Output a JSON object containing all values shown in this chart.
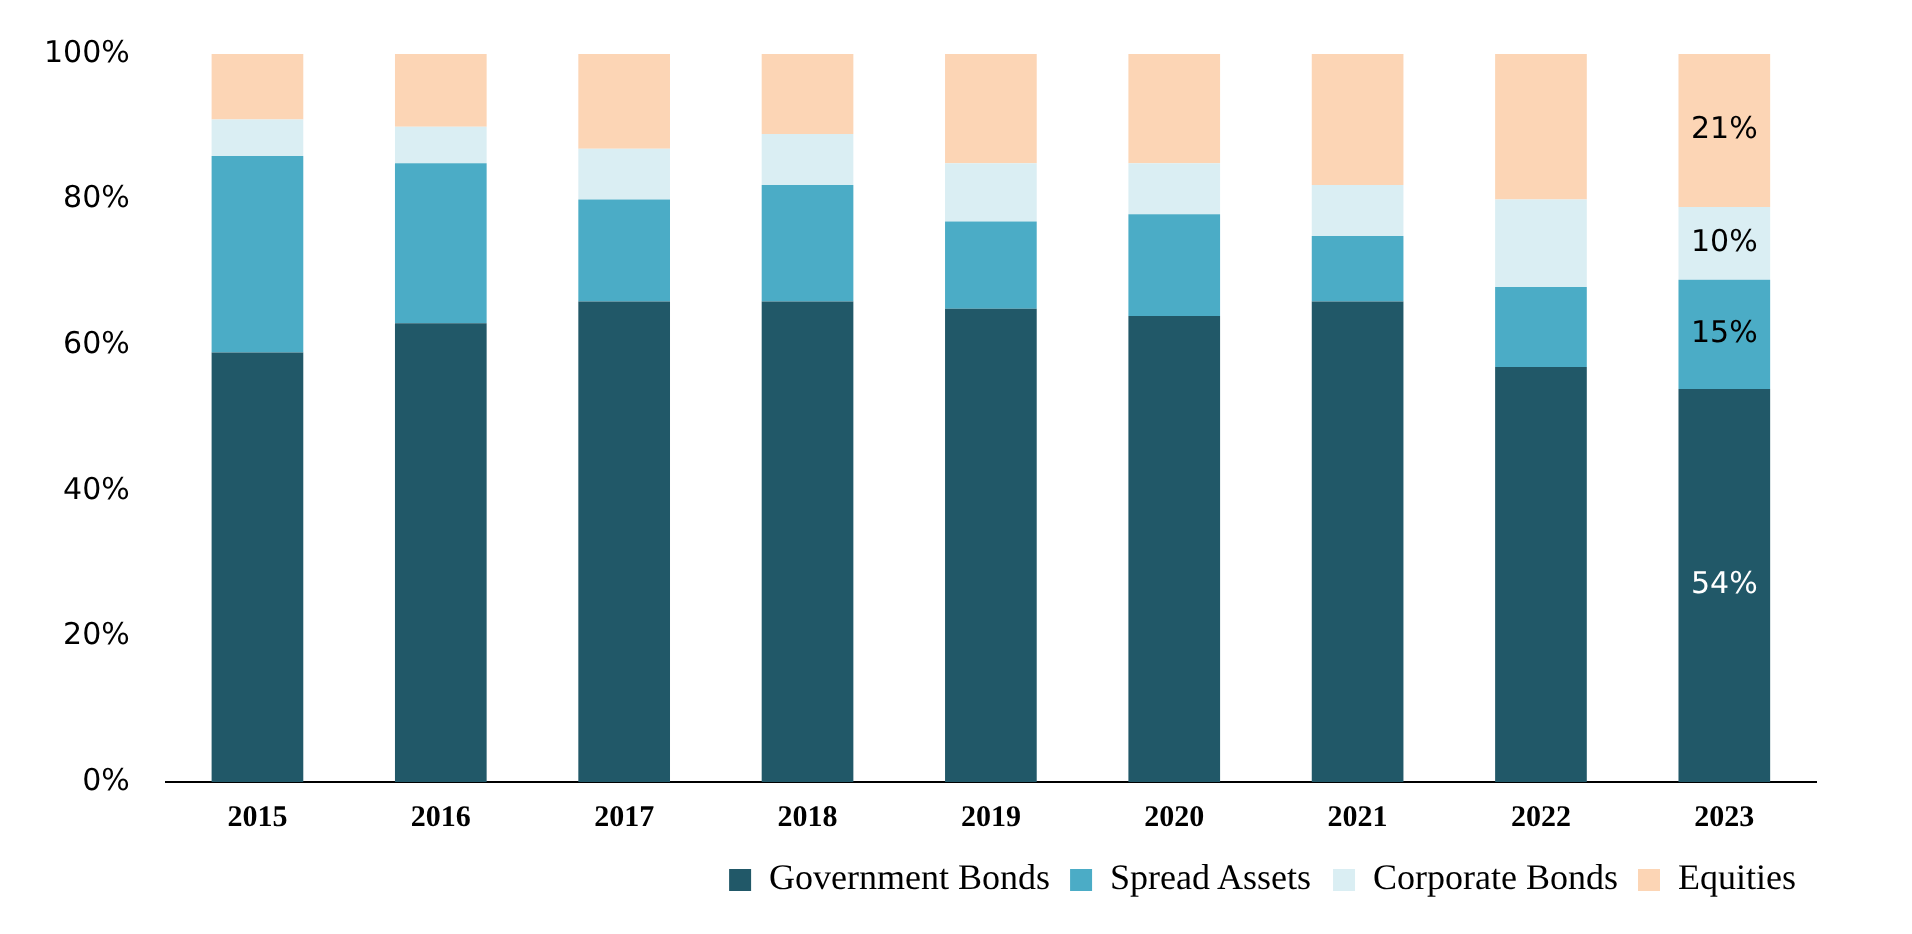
{
  "chart_data": {
    "type": "bar",
    "stacked": true,
    "categories": [
      "2015",
      "2016",
      "2017",
      "2018",
      "2019",
      "2020",
      "2021",
      "2022",
      "2023"
    ],
    "series": [
      {
        "name": "Government Bonds",
        "color": "#215868",
        "values": [
          59,
          63,
          66,
          66,
          65,
          64,
          66,
          57,
          54
        ],
        "value_labels": [
          null,
          null,
          null,
          null,
          null,
          null,
          null,
          null,
          "54%"
        ]
      },
      {
        "name": "Spread Assets",
        "color": "#4bacc6",
        "values": [
          27,
          22,
          14,
          16,
          12,
          14,
          9,
          11,
          15
        ],
        "value_labels": [
          null,
          null,
          null,
          null,
          null,
          null,
          null,
          null,
          "15%"
        ]
      },
      {
        "name": "Corporate Bonds",
        "color": "#daeef3",
        "values": [
          5,
          5,
          7,
          7,
          8,
          7,
          7,
          12,
          10
        ],
        "value_labels": [
          null,
          null,
          null,
          null,
          null,
          null,
          null,
          null,
          "10%"
        ]
      },
      {
        "name": "Equities",
        "color": "#fcd5b5",
        "values": [
          9,
          10,
          13,
          11,
          15,
          15,
          18,
          20,
          21
        ],
        "value_labels": [
          null,
          null,
          null,
          null,
          null,
          null,
          null,
          null,
          "21%"
        ]
      }
    ],
    "ylim": [
      0,
      100
    ],
    "yticks": [
      {
        "value": 0,
        "label": "0%"
      },
      {
        "value": 20,
        "label": "20%"
      },
      {
        "value": 40,
        "label": "40%"
      },
      {
        "value": 60,
        "label": "60%"
      },
      {
        "value": 80,
        "label": "80%"
      },
      {
        "value": 100,
        "label": "100%"
      }
    ],
    "grid": false,
    "legend": "bottom"
  }
}
